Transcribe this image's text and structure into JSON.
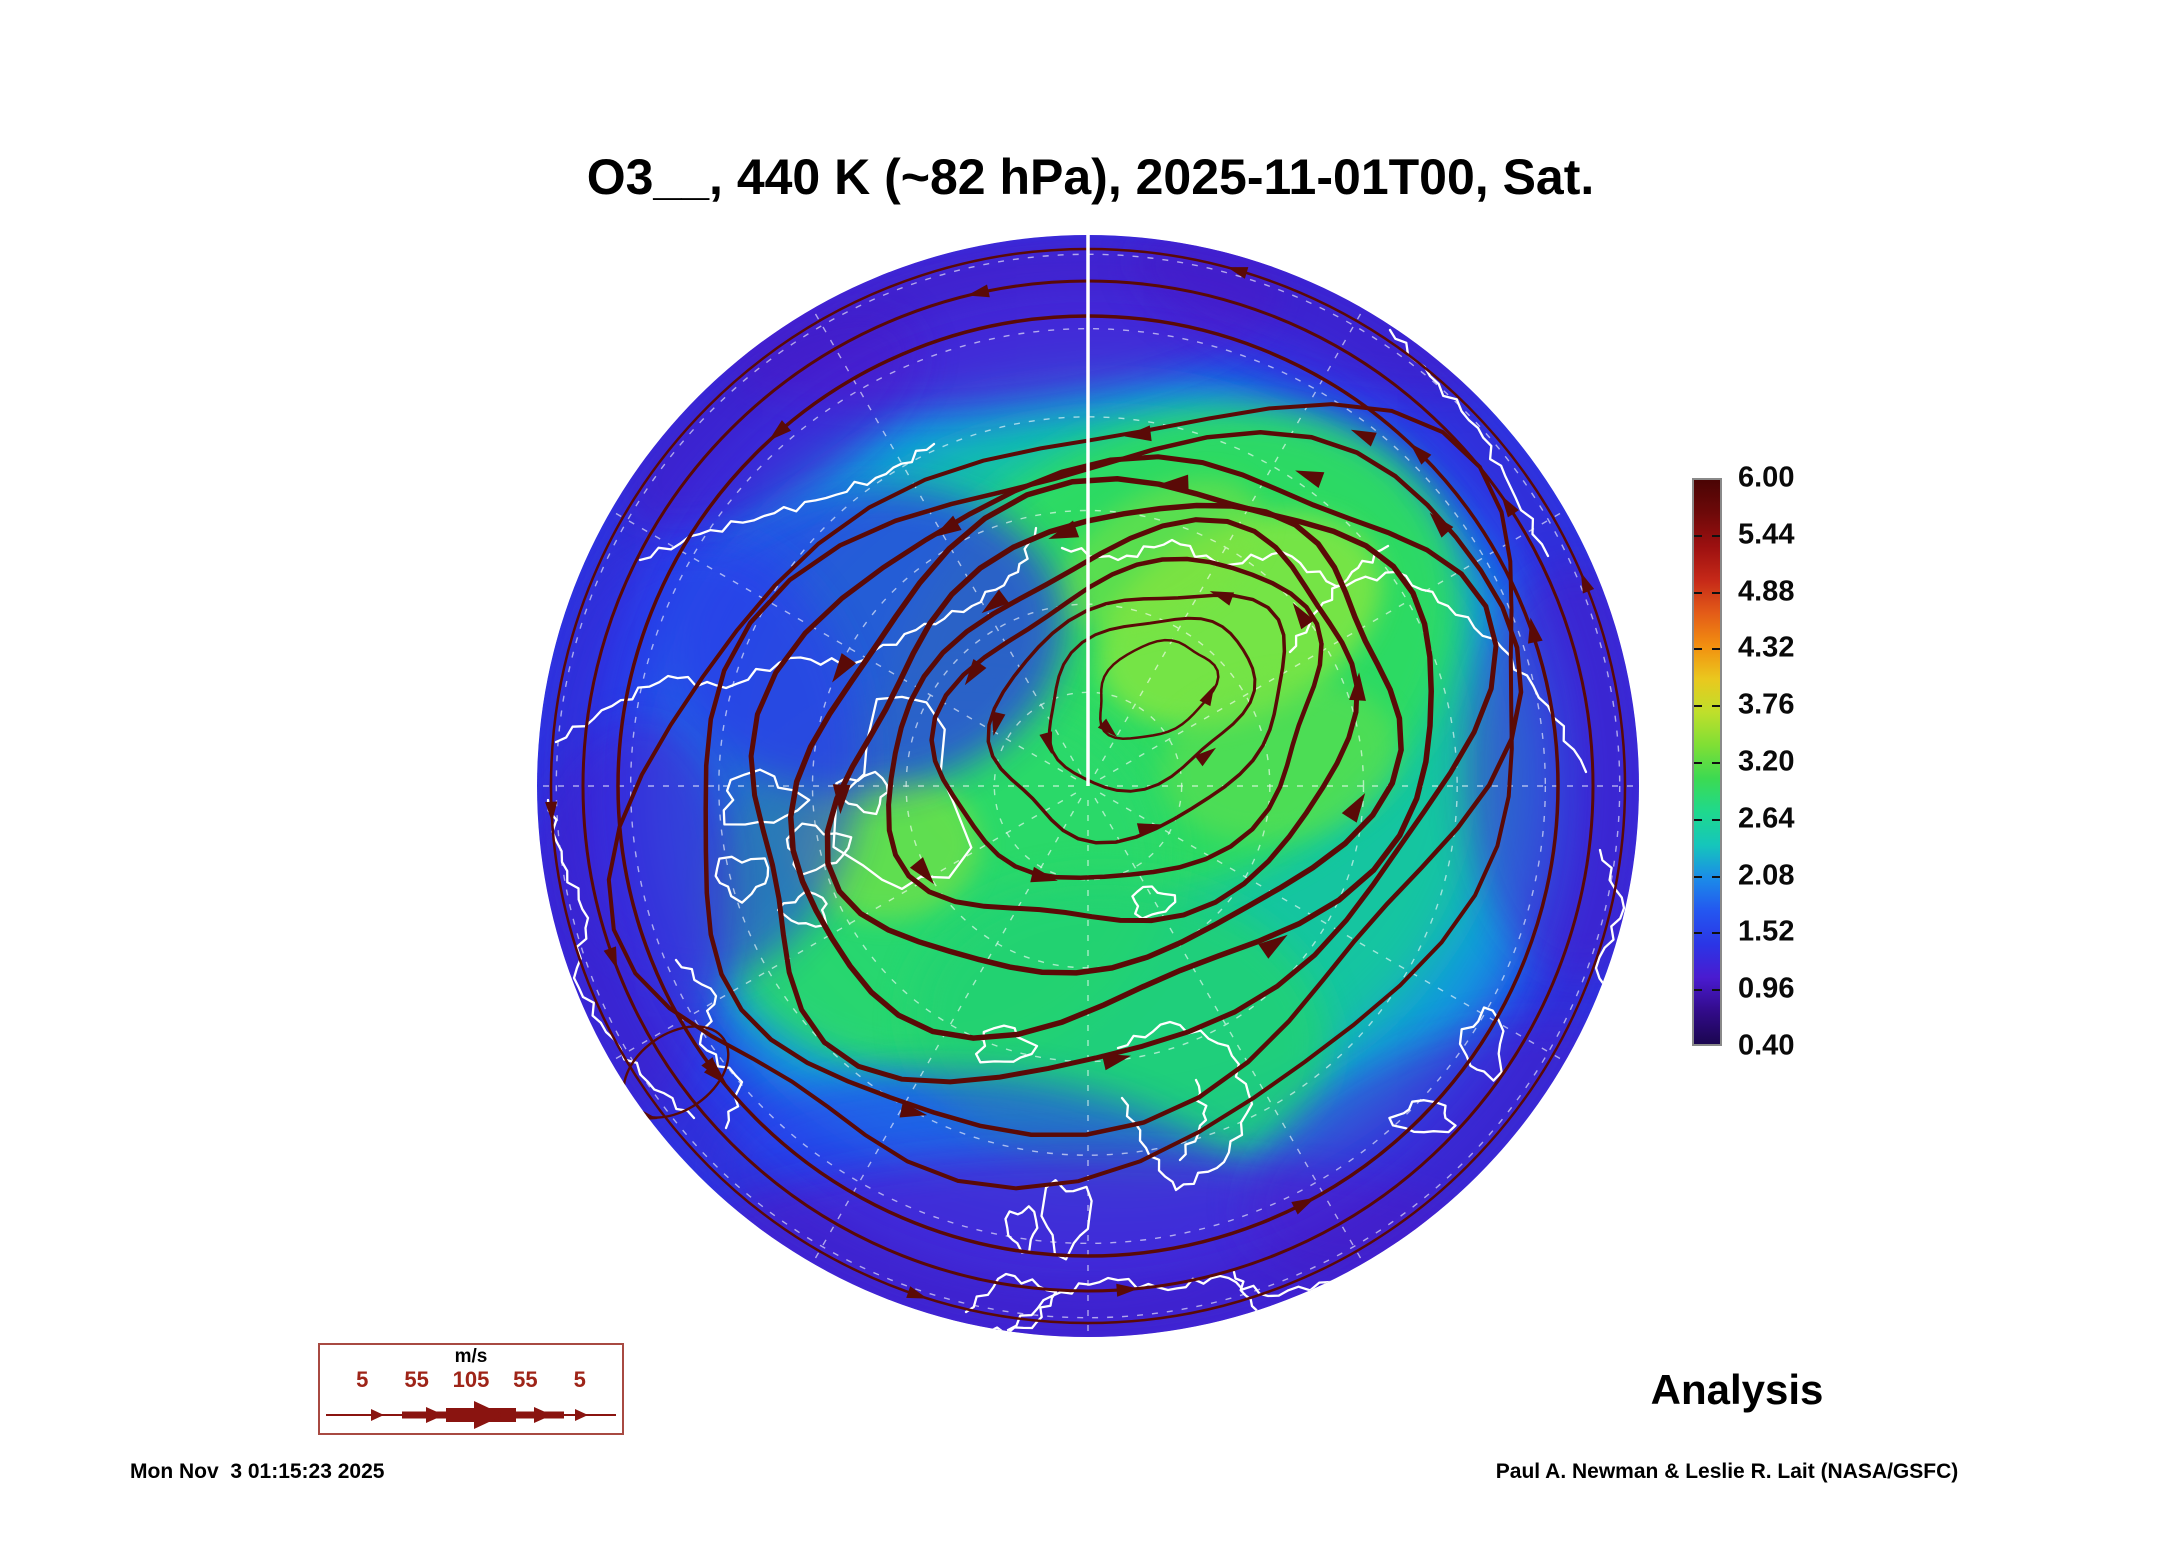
{
  "title": "O3__, 440 K (~82 hPa), 2025-11-01T00, Sat.",
  "annotations": {
    "analysis_label": "Analysis",
    "credit": "Paul A. Newman & Leslie R. Lait (NASA/GSFC)",
    "timestamp": "Mon Nov  3 01:15:23 2025"
  },
  "colorbar": {
    "tick_labels": [
      "6.00",
      "5.44",
      "4.88",
      "4.32",
      "3.76",
      "3.20",
      "2.64",
      "2.08",
      "1.52",
      "0.96",
      "0.40"
    ],
    "gradient_stops": [
      "#4a0404",
      "#6e0909",
      "#9c1010",
      "#c52818",
      "#e35b18",
      "#f28f10",
      "#eac81e",
      "#bfdf2b",
      "#7fdf35",
      "#3cda52",
      "#1fd98d",
      "#15c6bb",
      "#1b8ce8",
      "#2456f0",
      "#2b35e6",
      "#4a1bd0",
      "#320b8a",
      "#1b0650"
    ]
  },
  "wind_legend": {
    "units_label": "m/s",
    "speed_labels": [
      "5",
      "55",
      "105",
      "55",
      "5"
    ],
    "label_positions_pct": [
      14,
      32,
      50,
      68,
      86
    ]
  },
  "colors": {
    "streamline": "#5a0a07",
    "coastline": "#ffffff",
    "graticule": "rgba(255,255,255,0.75)",
    "legend_red": "#9e2418",
    "ocean_base": "#2b3ce8"
  },
  "chart_data": {
    "type": "heatmap",
    "title": "O3__, 440 K (~82 hPa), 2025-11-01T00, Sat.",
    "variable": "O3",
    "level": "440 K (~82 hPa)",
    "valid_time": "2025-11-01T00",
    "day_of_week": "Sat.",
    "run_type": "Analysis",
    "colorbar": {
      "min": 0.4,
      "max": 6.0,
      "ticks": [
        6.0,
        5.44,
        4.88,
        4.32,
        3.76,
        3.2,
        2.64,
        2.08,
        1.52,
        0.96,
        0.4
      ]
    },
    "overlay": {
      "type": "wind streamlines",
      "units": "m/s",
      "legend_speeds": [
        5,
        55,
        105,
        55,
        5
      ],
      "rotation_sense": "counterclockwise (cyclonic polar vortex)"
    },
    "field_reading": {
      "vortex_core_green_approx": "2.6 - 3.2, centered near pole offset toward Siberian side",
      "midlatitude_blue_band_approx": "1.5 - 2.1",
      "outer_rim_violet_approx": "0.9 - 1.4"
    },
    "layout_hints": {
      "projection": "north polar stereographic, pole centered",
      "graticule": "white dashed latitude circles and 30-degree meridians, solid white meridian from top rim to pole",
      "coastlines": "white outlines",
      "legend_position": "colorbar right of map; wind scale box lower left"
    }
  }
}
